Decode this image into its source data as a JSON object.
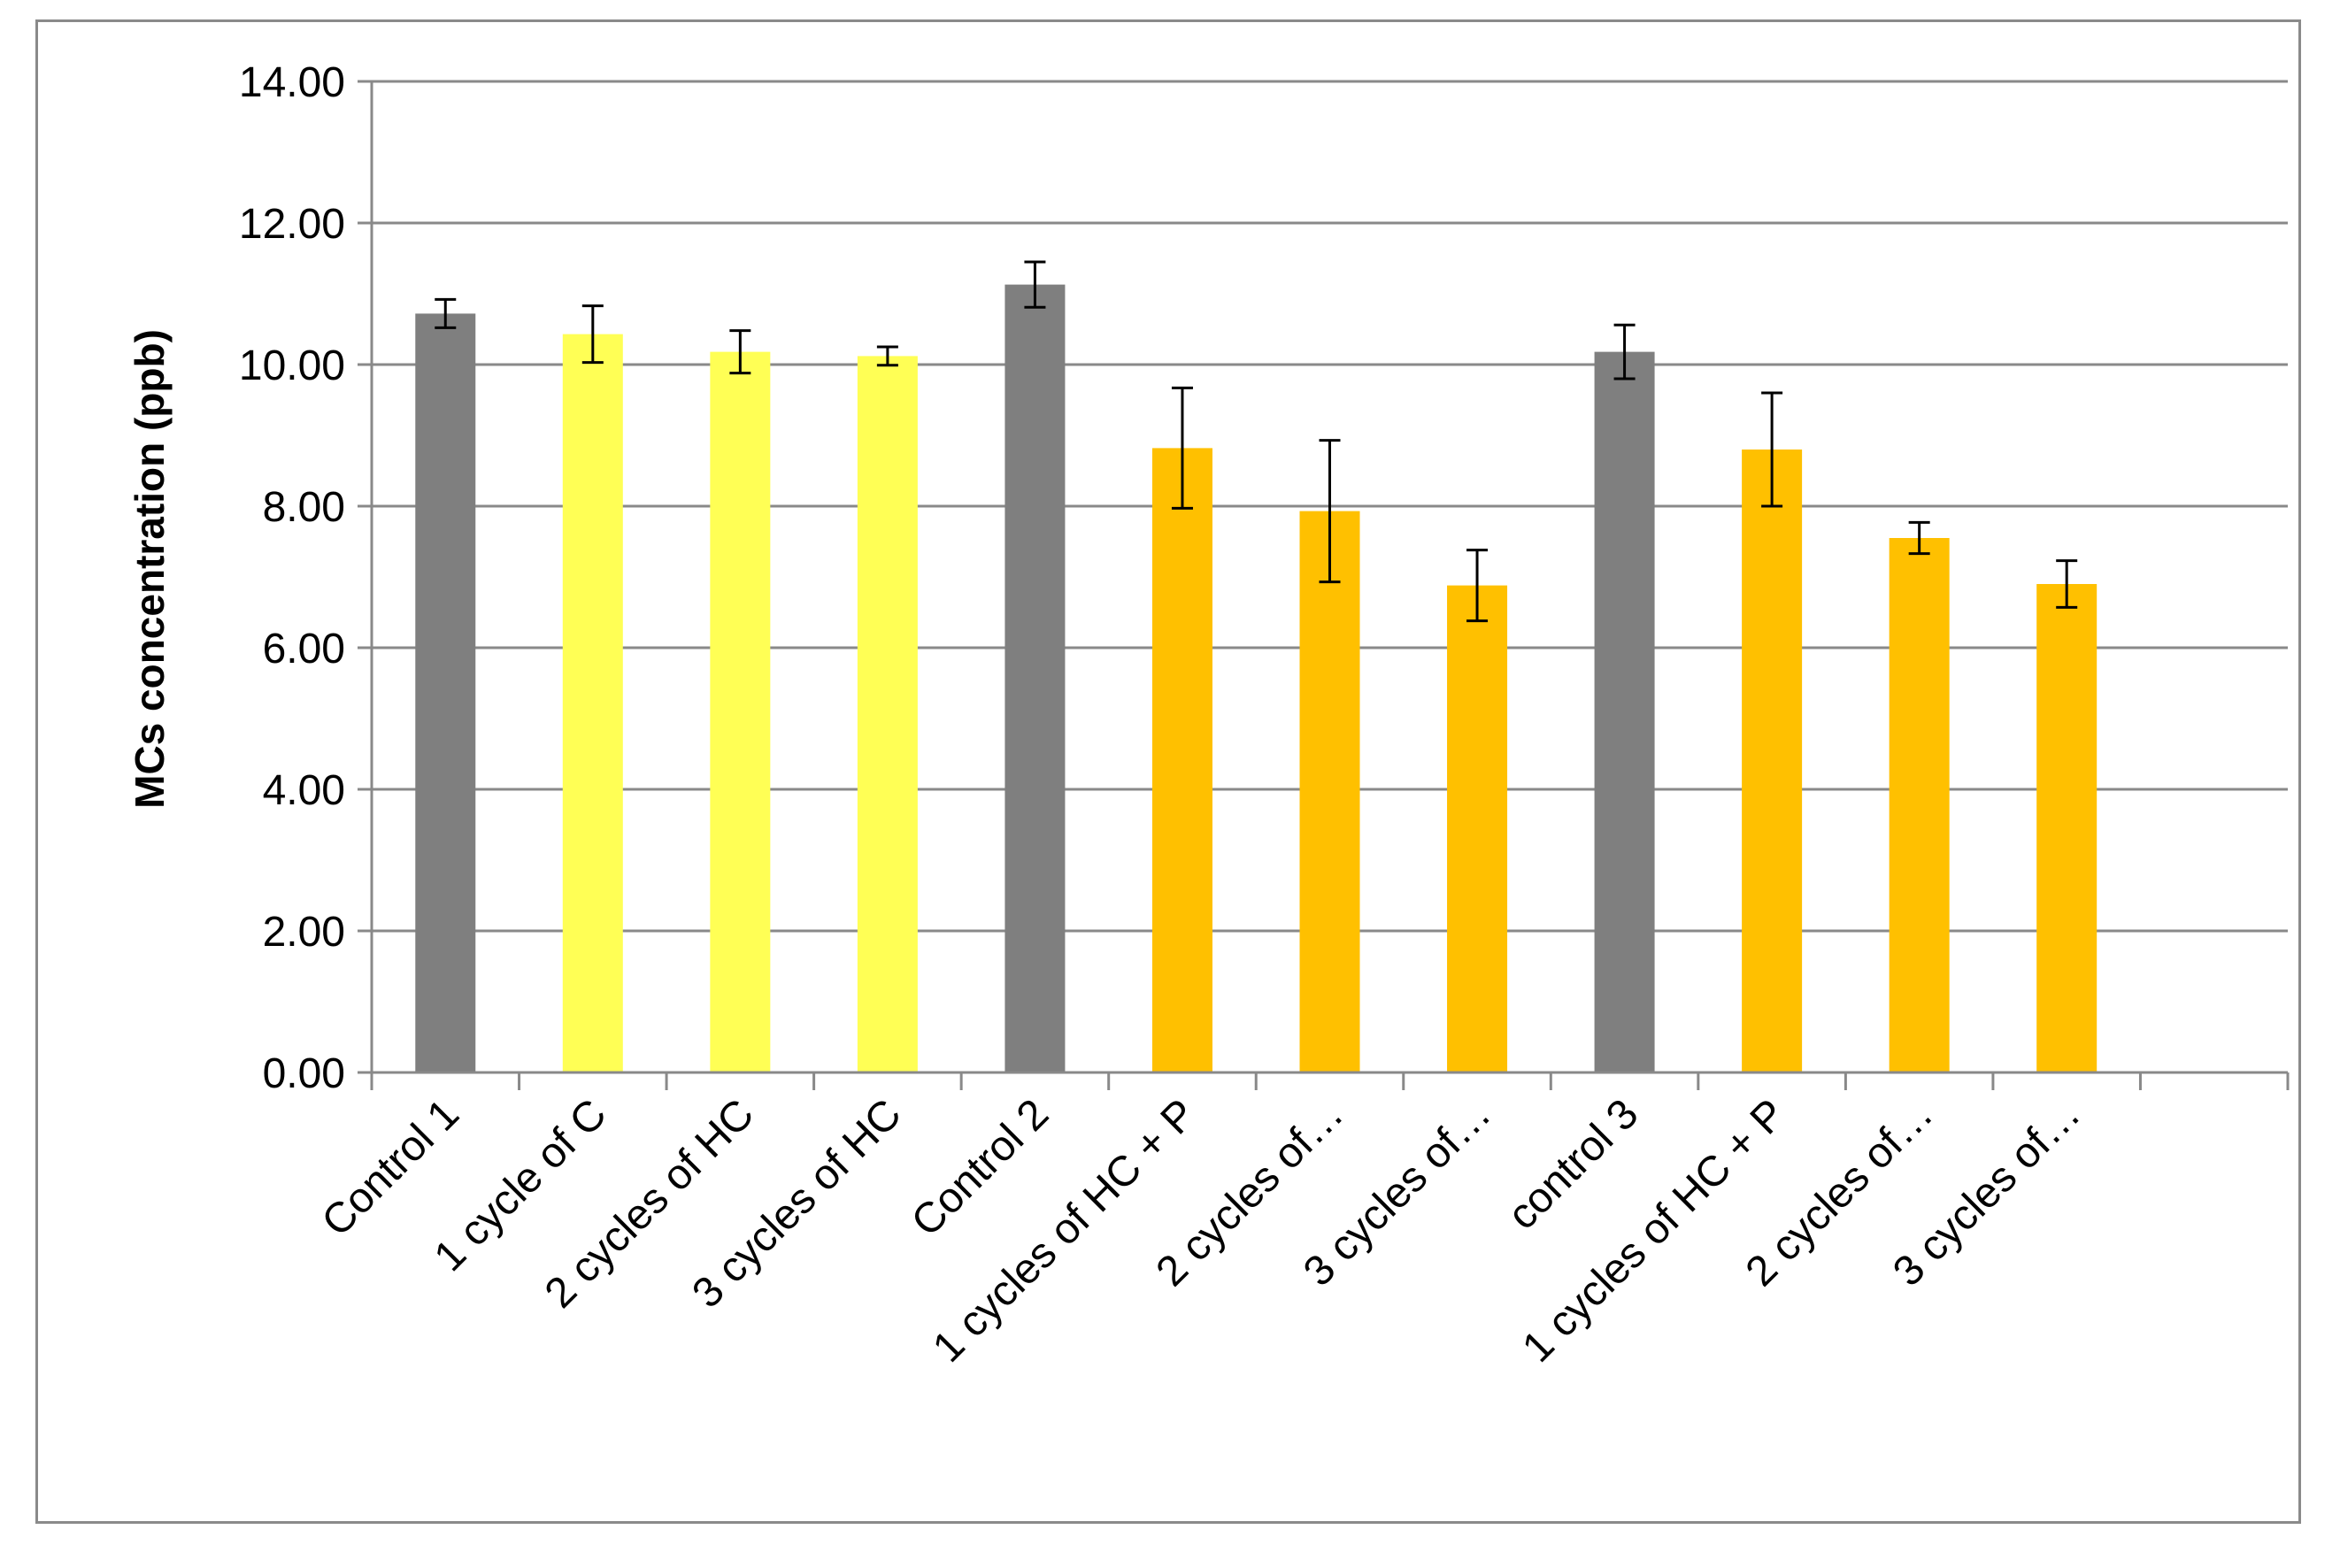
{
  "chart_data": {
    "type": "bar",
    "ylabel": "MCs concentration (ppb)",
    "ylim": [
      0,
      14
    ],
    "ytick_step": 2,
    "ytick_labels": [
      "0.00",
      "2.00",
      "4.00",
      "6.00",
      "8.00",
      "10.00",
      "12.00",
      "14.00"
    ],
    "grid": true,
    "legend": "none",
    "categories": [
      "Control 1",
      "1 cycle of C",
      "2 cycles of HC",
      "3 cycles of HC",
      "Control 2",
      "1 cycles of HC + P",
      "2 cycles of…",
      "3 cycles of…",
      "control 3",
      "1 cycles of HC + P",
      "2 cycles of…",
      "3 cycles of…"
    ],
    "values": [
      10.72,
      10.43,
      10.18,
      10.12,
      11.13,
      8.82,
      7.93,
      6.88,
      10.18,
      8.8,
      7.55,
      6.9
    ],
    "errors": [
      0.2,
      0.4,
      0.3,
      0.13,
      0.32,
      0.85,
      1.0,
      0.5,
      0.38,
      0.8,
      0.22,
      0.33
    ],
    "colors": [
      "#7f7f7f",
      "#ffff55",
      "#ffff55",
      "#ffff55",
      "#7f7f7f",
      "#ffc000",
      "#ffc000",
      "#ffc000",
      "#7f7f7f",
      "#ffc000",
      "#ffc000",
      "#ffc000"
    ],
    "gridline_color": "#898989",
    "error_bar_color": "#000000"
  }
}
